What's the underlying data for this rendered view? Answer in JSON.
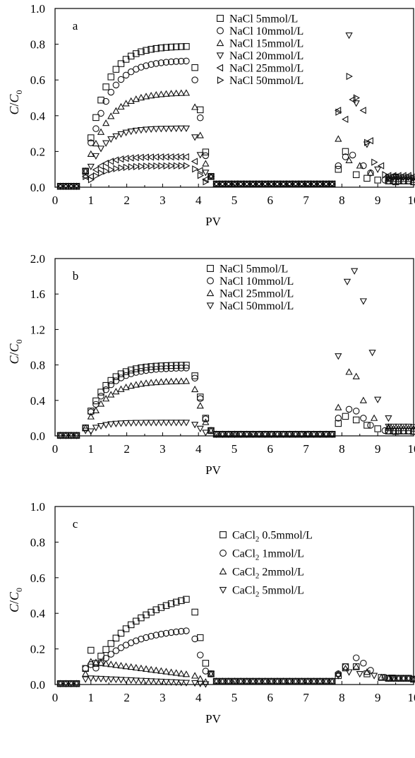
{
  "chart_data": [
    {
      "type": "scatter",
      "panel_label": "a",
      "xlabel": "PV",
      "ylabel_main": "C",
      "ylabel_slash": "/",
      "ylabel_C": "C",
      "ylabel_sub": "0",
      "xlim": [
        0,
        10
      ],
      "ylim": [
        0,
        1.0
      ],
      "xticks": [
        0,
        1,
        2,
        3,
        4,
        5,
        6,
        7,
        8,
        9,
        10
      ],
      "yticks": [
        0.0,
        0.2,
        0.4,
        0.6,
        0.8,
        1.0
      ],
      "ytick_decimals": 1,
      "legend_position": "top-right",
      "series": [
        {
          "name": "NaCl 5mmol/L",
          "marker": "square",
          "params": {
            "top": 0.79,
            "rise": 0.5,
            "spike": [
              [
                7.9,
                0.1
              ],
              [
                8.1,
                0.2
              ],
              [
                8.4,
                0.07
              ],
              [
                8.7,
                0.05
              ],
              [
                9.0,
                0.04
              ],
              [
                9.5,
                0.03
              ],
              [
                10.0,
                0.03
              ]
            ]
          }
        },
        {
          "name": "NaCl 10mmol/L",
          "marker": "circle",
          "params": {
            "top": 0.71,
            "rise": 0.55,
            "spike": [
              [
                7.9,
                0.12
              ],
              [
                8.1,
                0.17
              ],
              [
                8.3,
                0.18
              ],
              [
                8.6,
                0.12
              ],
              [
                8.8,
                0.08
              ],
              [
                9.2,
                0.04
              ],
              [
                10.0,
                0.03
              ]
            ]
          }
        },
        {
          "name": "NaCl 15mmol/L",
          "marker": "triangle-up",
          "params": {
            "top": 0.53,
            "rise": 0.55,
            "spike": [
              [
                7.9,
                0.27
              ],
              [
                8.2,
                0.15
              ],
              [
                8.5,
                0.12
              ],
              [
                8.8,
                0.08
              ],
              [
                9.3,
                0.05
              ],
              [
                10.0,
                0.04
              ]
            ]
          }
        },
        {
          "name": "NaCl 20mmol/L",
          "marker": "triangle-down",
          "params": {
            "top": 0.33,
            "rise": 0.45,
            "spike": [
              [
                8.2,
                0.85
              ],
              [
                8.4,
                0.47
              ],
              [
                8.7,
                0.24
              ],
              [
                9.0,
                0.1
              ],
              [
                9.5,
                0.06
              ],
              [
                10.0,
                0.05
              ]
            ]
          }
        },
        {
          "name": "NaCl 25mmol/L",
          "marker": "triangle-left",
          "params": {
            "top": 0.17,
            "rise": 0.4,
            "spike": [
              [
                7.9,
                0.43
              ],
              [
                8.1,
                0.38
              ],
              [
                8.3,
                0.49
              ],
              [
                8.6,
                0.43
              ],
              [
                8.8,
                0.26
              ],
              [
                9.1,
                0.12
              ],
              [
                10.0,
                0.06
              ]
            ]
          }
        },
        {
          "name": "NaCl 50mmol/L",
          "marker": "triangle-right",
          "params": {
            "top": 0.12,
            "rise": 0.45,
            "spike": [
              [
                7.9,
                0.42
              ],
              [
                8.2,
                0.62
              ],
              [
                8.4,
                0.5
              ],
              [
                8.7,
                0.25
              ],
              [
                8.9,
                0.14
              ],
              [
                9.2,
                0.07
              ],
              [
                10.0,
                0.05
              ]
            ]
          }
        }
      ]
    },
    {
      "type": "scatter",
      "panel_label": "b",
      "xlabel": "PV",
      "ylabel_main": "C",
      "ylabel_slash": "/",
      "ylabel_C": "C",
      "ylabel_sub": "0",
      "xlim": [
        0,
        10
      ],
      "ylim": [
        0,
        2.0
      ],
      "xticks": [
        0,
        1,
        2,
        3,
        4,
        5,
        6,
        7,
        8,
        9,
        10
      ],
      "yticks": [
        0.0,
        0.4,
        0.8,
        1.2,
        1.6,
        2.0
      ],
      "ytick_decimals": 1,
      "legend_position": "top-right",
      "series": [
        {
          "name": "NaCl 5mmol/L",
          "marker": "square",
          "params": {
            "top": 0.8,
            "rise": 0.5,
            "spike": [
              [
                7.9,
                0.14
              ],
              [
                8.1,
                0.22
              ],
              [
                8.4,
                0.18
              ],
              [
                8.7,
                0.12
              ],
              [
                9.0,
                0.08
              ],
              [
                9.5,
                0.05
              ],
              [
                10.0,
                0.05
              ]
            ]
          }
        },
        {
          "name": "NaCl 10mmol/L",
          "marker": "circle",
          "params": {
            "top": 0.77,
            "rise": 0.55,
            "spike": [
              [
                7.9,
                0.2
              ],
              [
                8.2,
                0.3
              ],
              [
                8.4,
                0.28
              ],
              [
                8.6,
                0.2
              ],
              [
                8.8,
                0.12
              ],
              [
                9.2,
                0.06
              ],
              [
                10.0,
                0.05
              ]
            ]
          }
        },
        {
          "name": "NaCl 25mmol/L",
          "marker": "triangle-up",
          "params": {
            "top": 0.62,
            "rise": 0.55,
            "spike": [
              [
                7.9,
                0.32
              ],
              [
                8.2,
                0.72
              ],
              [
                8.4,
                0.67
              ],
              [
                8.6,
                0.4
              ],
              [
                8.9,
                0.2
              ],
              [
                9.3,
                0.1
              ],
              [
                10.0,
                0.08
              ]
            ]
          }
        },
        {
          "name": "NaCl 50mmol/L",
          "marker": "triangle-down",
          "params": {
            "top": 0.15,
            "rise": 0.35,
            "spike": [
              [
                7.9,
                0.9
              ],
              [
                8.15,
                1.74
              ],
              [
                8.35,
                1.86
              ],
              [
                8.6,
                1.52
              ],
              [
                8.85,
                0.94
              ],
              [
                9.0,
                0.41
              ],
              [
                9.3,
                0.2
              ],
              [
                10.0,
                0.1
              ]
            ]
          }
        }
      ]
    },
    {
      "type": "scatter",
      "panel_label": "c",
      "xlabel": "PV",
      "ylabel_main": "C",
      "ylabel_slash": "/",
      "ylabel_C": "C",
      "ylabel_sub": "0",
      "xlim": [
        0,
        10
      ],
      "ylim": [
        0,
        1.0
      ],
      "xticks": [
        0,
        1,
        2,
        3,
        4,
        5,
        6,
        7,
        8,
        9,
        10
      ],
      "yticks": [
        0.0,
        0.2,
        0.4,
        0.6,
        0.8,
        1.0
      ],
      "ytick_decimals": 1,
      "legend_position": "top-right",
      "series": [
        {
          "name": "CaCl",
          "sub": "2",
          "suffix": " 0.5mmol/L",
          "marker": "square",
          "params": {
            "top": 0.55,
            "rise": 1.4,
            "spike": [
              [
                7.9,
                0.05
              ],
              [
                8.1,
                0.1
              ],
              [
                8.4,
                0.1
              ],
              [
                8.7,
                0.06
              ],
              [
                9.1,
                0.04
              ],
              [
                10.0,
                0.03
              ]
            ]
          }
        },
        {
          "name": "CaCl",
          "sub": "2",
          "suffix": " 1mmol/L",
          "marker": "circle",
          "params": {
            "top": 0.32,
            "rise": 1.0,
            "spike": [
              [
                7.9,
                0.06
              ],
              [
                8.1,
                0.1
              ],
              [
                8.4,
                0.15
              ],
              [
                8.6,
                0.12
              ],
              [
                8.8,
                0.08
              ],
              [
                9.2,
                0.04
              ],
              [
                10.0,
                0.03
              ]
            ]
          }
        },
        {
          "name": "CaCl",
          "sub": "2",
          "suffix": " 2mmol/L",
          "marker": "triangle-up",
          "params": {
            "top": 0.12,
            "rise": 0.3,
            "decay": true,
            "spike": [
              [
                7.9,
                0.06
              ],
              [
                8.1,
                0.09
              ],
              [
                8.4,
                0.1
              ],
              [
                8.7,
                0.07
              ],
              [
                9.1,
                0.04
              ],
              [
                10.0,
                0.03
              ]
            ]
          }
        },
        {
          "name": "CaCl",
          "sub": "2",
          "suffix": " 5mmol/L",
          "marker": "triangle-down",
          "params": {
            "top": 0.03,
            "rise": 0.3,
            "flat": true,
            "spike": [
              [
                7.9,
                0.05
              ],
              [
                8.2,
                0.07
              ],
              [
                8.5,
                0.06
              ],
              [
                8.9,
                0.05
              ],
              [
                9.4,
                0.04
              ],
              [
                10.0,
                0.03
              ]
            ]
          }
        }
      ]
    }
  ]
}
